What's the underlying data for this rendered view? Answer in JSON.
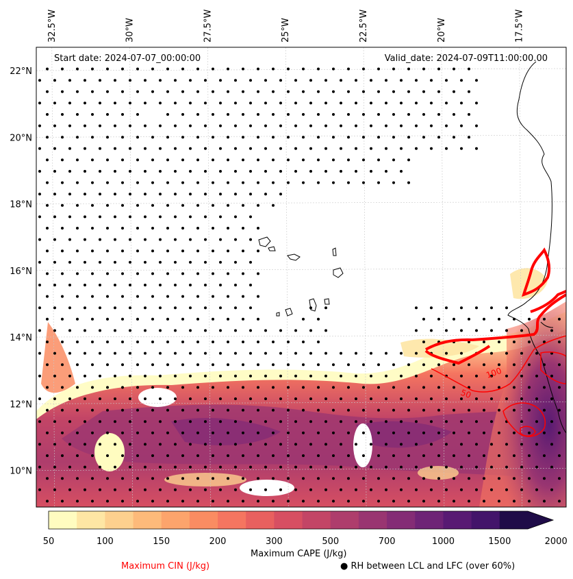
{
  "header": {
    "start_date": "Start date: 2024-07-07_00:00:00",
    "valid_date": "Valid_date: 2024-07-09T11:00:00.00"
  },
  "map": {
    "lon_range": [
      -33.0,
      -16.0
    ],
    "lat_range": [
      8.9,
      22.7
    ],
    "lon_ticks": [
      {
        "value": -32.5,
        "label": "32.5°W"
      },
      {
        "value": -30.0,
        "label": "30°W"
      },
      {
        "value": -27.5,
        "label": "27.5°W"
      },
      {
        "value": -25.0,
        "label": "25°W"
      },
      {
        "value": -22.5,
        "label": "22.5°W"
      },
      {
        "value": -20.0,
        "label": "20°W"
      },
      {
        "value": -17.5,
        "label": "17.5°W"
      }
    ],
    "lat_ticks": [
      {
        "value": 22,
        "label": "22°N"
      },
      {
        "value": 20,
        "label": "20°N"
      },
      {
        "value": 18,
        "label": "18°N"
      },
      {
        "value": 16,
        "label": "16°N"
      },
      {
        "value": 14,
        "label": "14°N"
      },
      {
        "value": 12,
        "label": "12°N"
      },
      {
        "value": 10,
        "label": "10°N"
      }
    ],
    "cin_contour_labels": [
      "50",
      "100"
    ],
    "gridlines": true
  },
  "colorbar": {
    "ticks": [
      "50",
      "100",
      "150",
      "200",
      "300",
      "500",
      "700",
      "1000",
      "1500",
      "2000"
    ],
    "colors": [
      "#fffcc0",
      "#fee6a4",
      "#fdd08e",
      "#fdba7a",
      "#fca46c",
      "#fa8c62",
      "#f57560",
      "#e8605f",
      "#d74f62",
      "#c34566",
      "#ae3d6c",
      "#993571",
      "#842c75",
      "#6e2376",
      "#581a73",
      "#43146a",
      "#2f105a",
      "#1f0c48"
    ],
    "title": "Maximum CAPE (J/kg)"
  },
  "legend": {
    "cin_label": "Maximum CIN (J/kg)",
    "cin_color": "#ff0000",
    "rh_label": "RH between LCL and LFC (over 60%)",
    "rh_marker": "●"
  }
}
